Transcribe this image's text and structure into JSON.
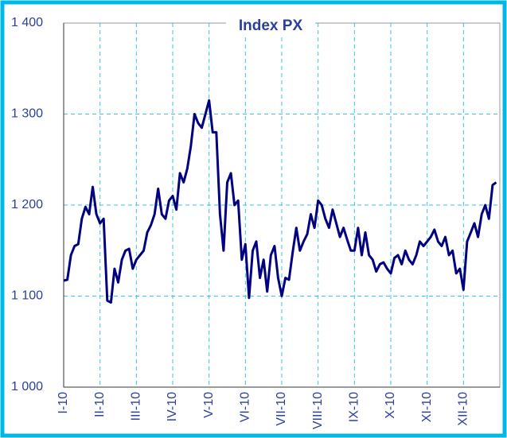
{
  "chart_data": {
    "type": "line",
    "title": "Index PX",
    "categories": [
      "I-10",
      null,
      null,
      null,
      null,
      null,
      null,
      null,
      null,
      null,
      "II-10",
      null,
      null,
      null,
      null,
      null,
      null,
      null,
      null,
      null,
      "III-10",
      null,
      null,
      null,
      null,
      null,
      null,
      null,
      null,
      null,
      "IV-10",
      null,
      null,
      null,
      null,
      null,
      null,
      null,
      null,
      null,
      "V-10",
      null,
      null,
      null,
      null,
      null,
      null,
      null,
      null,
      null,
      "VI-10",
      null,
      null,
      null,
      null,
      null,
      null,
      null,
      null,
      null,
      "VII-10",
      null,
      null,
      null,
      null,
      null,
      null,
      null,
      null,
      null,
      "VIII-10",
      null,
      null,
      null,
      null,
      null,
      null,
      null,
      null,
      null,
      "IX-10",
      null,
      null,
      null,
      null,
      null,
      null,
      null,
      null,
      null,
      "X-10",
      null,
      null,
      null,
      null,
      null,
      null,
      null,
      null,
      null,
      "XI-10",
      null,
      null,
      null,
      null,
      null,
      null,
      null,
      null,
      null,
      "XII-10",
      null,
      null,
      null,
      null,
      null,
      null,
      null,
      null,
      null
    ],
    "series": [
      {
        "color": "#000080",
        "values": [
          1117,
          1118,
          1145,
          1155,
          1157,
          1185,
          1198,
          1190,
          1220,
          1190,
          1180,
          1185,
          1095,
          1093,
          1130,
          1115,
          1140,
          1150,
          1152,
          1130,
          1140,
          1145,
          1150,
          1170,
          1178,
          1190,
          1218,
          1190,
          1185,
          1205,
          1210,
          1195,
          1235,
          1225,
          1240,
          1265,
          1300,
          1290,
          1285,
          1300,
          1315,
          1280,
          1280,
          1190,
          1150,
          1225,
          1235,
          1200,
          1205,
          1140,
          1157,
          1098,
          1150,
          1160,
          1120,
          1140,
          1105,
          1145,
          1155,
          1120,
          1100,
          1120,
          1118,
          1148,
          1175,
          1150,
          1160,
          1168,
          1190,
          1175,
          1205,
          1200,
          1185,
          1175,
          1195,
          1180,
          1165,
          1175,
          1162,
          1150,
          1150,
          1175,
          1145,
          1170,
          1145,
          1140,
          1127,
          1135,
          1137,
          1130,
          1125,
          1142,
          1145,
          1135,
          1150,
          1140,
          1135,
          1145,
          1160,
          1155,
          1160,
          1165,
          1173,
          1160,
          1155,
          1165,
          1145,
          1150,
          1125,
          1130,
          1107,
          1160,
          1170,
          1180,
          1165,
          1190,
          1200,
          1185,
          1222,
          1225
        ]
      }
    ],
    "ylim": [
      1000,
      1400
    ],
    "yticks": [
      {
        "value": 1000,
        "label": "1 000"
      },
      {
        "value": 1100,
        "label": "1 100"
      },
      {
        "value": 1200,
        "label": "1 200"
      },
      {
        "value": 1300,
        "label": "1 300"
      },
      {
        "value": 1400,
        "label": "1 400"
      }
    ],
    "grid": true
  }
}
